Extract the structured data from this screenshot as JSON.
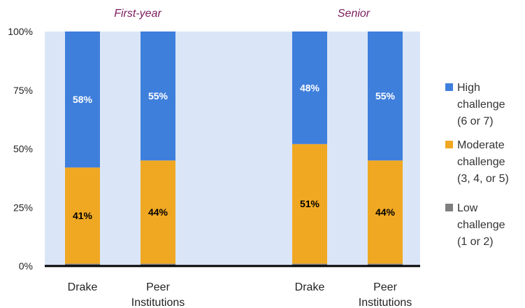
{
  "chart_data": {
    "type": "bar",
    "stacked": true,
    "groups": [
      {
        "label": "First-year",
        "categories": [
          "Drake",
          "Peer Institutions"
        ]
      },
      {
        "label": "Senior",
        "categories": [
          "Drake",
          "Peer Institutions"
        ]
      }
    ],
    "categories": [
      "Drake",
      "Peer Institutions",
      "Drake",
      "Peer Institutions"
    ],
    "series": [
      {
        "name": "Low challenge (1 or 2)",
        "legend_lines": [
          "Low",
          "challenge",
          "(1 or 2)"
        ],
        "color": "#7f7f7f",
        "values": [
          1,
          1,
          1,
          1
        ],
        "labels": [
          "",
          "",
          "",
          ""
        ]
      },
      {
        "name": "Moderate challenge (3, 4, or 5)",
        "legend_lines": [
          "Moderate",
          "challenge",
          "(3, 4, or 5)"
        ],
        "color": "#f0a823",
        "values": [
          41,
          44,
          51,
          44
        ],
        "labels": [
          "41%",
          "44%",
          "51%",
          "44%"
        ],
        "label_color": "#000000"
      },
      {
        "name": "High challenge (6 or 7)",
        "legend_lines": [
          "High",
          "challenge",
          "(6 or 7)"
        ],
        "color": "#3f7fdc",
        "values": [
          58,
          55,
          48,
          55
        ],
        "labels": [
          "58%",
          "55%",
          "48%",
          "55%"
        ],
        "label_color": "#ffffff"
      }
    ],
    "ylim": [
      0,
      100
    ],
    "yticks": [
      "0%",
      "25%",
      "50%",
      "75%",
      "100%"
    ],
    "ytick_values": [
      0,
      25,
      50,
      75,
      100
    ],
    "plot_background": "#dae6f7",
    "legend_position": "right"
  }
}
